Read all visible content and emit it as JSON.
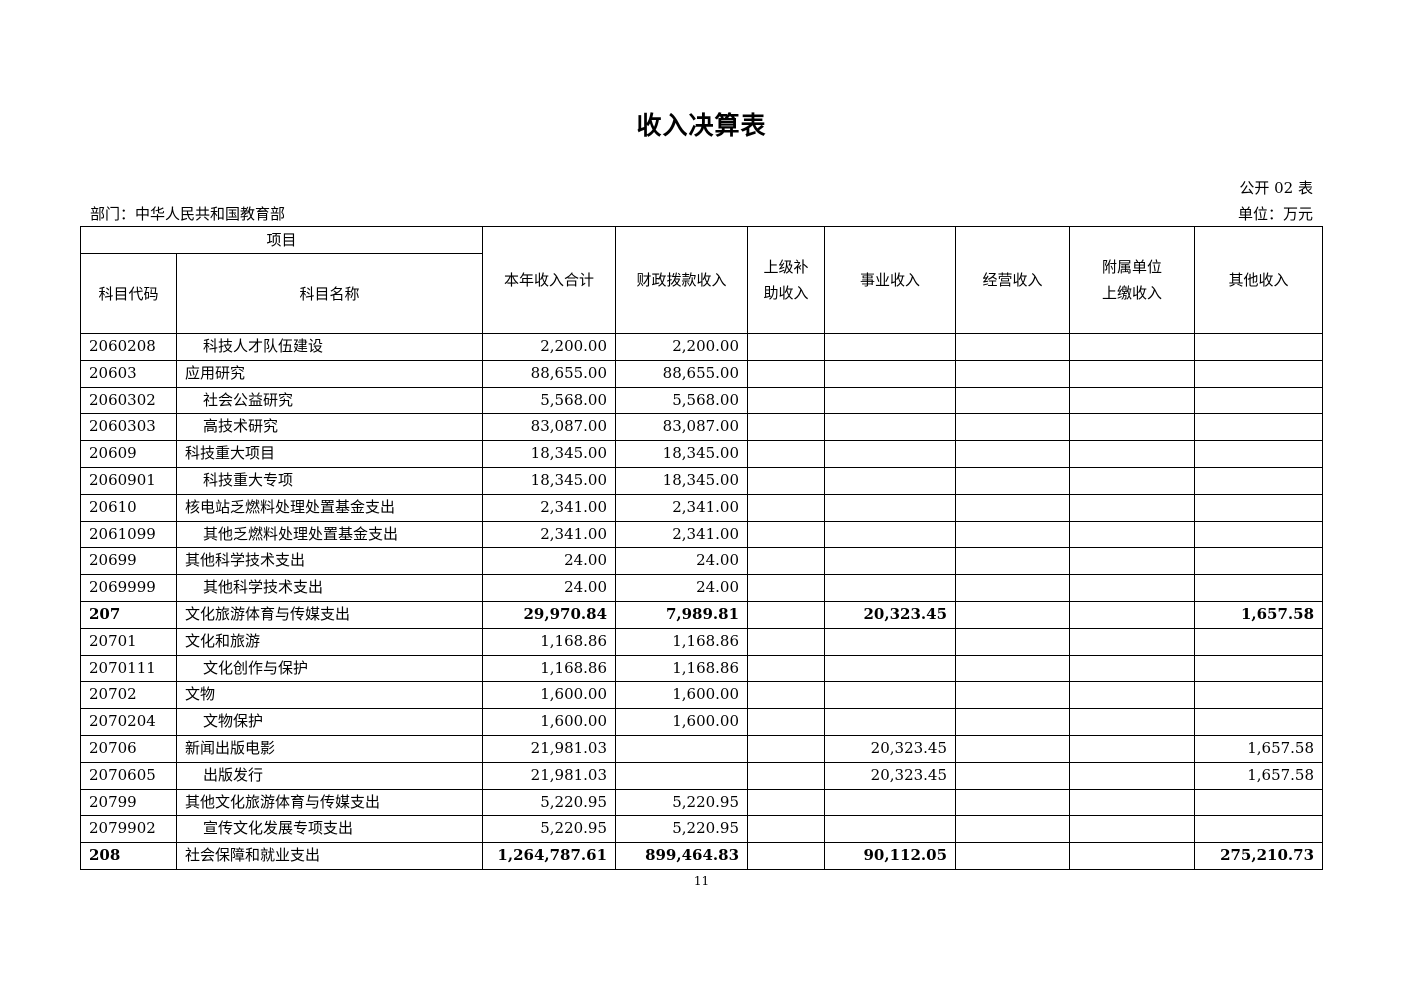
{
  "title": "收入决算表",
  "form_number": "公开 02 表",
  "department": "部门：中华人民共和国教育部",
  "unit": "单位：万元",
  "header": {
    "item_group": "项目",
    "code": "科目代码",
    "name": "科目名称",
    "total": "本年收入合计",
    "fiscal": "财政拨款收入",
    "upper_subsidy": "上级补助收入",
    "business": "事业收入",
    "operating": "经营收入",
    "affiliated": "附属单位上缴收入",
    "other": "其他收入"
  },
  "rows": [
    {
      "code": "2060208",
      "name": "科技人才队伍建设",
      "indent": true,
      "total": "2,200.00",
      "fiscal": "2,200.00",
      "upper_subsidy": "",
      "business": "",
      "operating": "",
      "affiliated": "",
      "other": ""
    },
    {
      "code": "20603",
      "name": "应用研究",
      "indent": false,
      "total": "88,655.00",
      "fiscal": "88,655.00",
      "upper_subsidy": "",
      "business": "",
      "operating": "",
      "affiliated": "",
      "other": ""
    },
    {
      "code": "2060302",
      "name": "社会公益研究",
      "indent": true,
      "total": "5,568.00",
      "fiscal": "5,568.00",
      "upper_subsidy": "",
      "business": "",
      "operating": "",
      "affiliated": "",
      "other": ""
    },
    {
      "code": "2060303",
      "name": "高技术研究",
      "indent": true,
      "total": "83,087.00",
      "fiscal": "83,087.00",
      "upper_subsidy": "",
      "business": "",
      "operating": "",
      "affiliated": "",
      "other": ""
    },
    {
      "code": "20609",
      "name": "科技重大项目",
      "indent": false,
      "total": "18,345.00",
      "fiscal": "18,345.00",
      "upper_subsidy": "",
      "business": "",
      "operating": "",
      "affiliated": "",
      "other": ""
    },
    {
      "code": "2060901",
      "name": "科技重大专项",
      "indent": true,
      "total": "18,345.00",
      "fiscal": "18,345.00",
      "upper_subsidy": "",
      "business": "",
      "operating": "",
      "affiliated": "",
      "other": ""
    },
    {
      "code": "20610",
      "name": "核电站乏燃料处理处置基金支出",
      "indent": false,
      "total": "2,341.00",
      "fiscal": "2,341.00",
      "upper_subsidy": "",
      "business": "",
      "operating": "",
      "affiliated": "",
      "other": ""
    },
    {
      "code": "2061099",
      "name": "其他乏燃料处理处置基金支出",
      "indent": true,
      "total": "2,341.00",
      "fiscal": "2,341.00",
      "upper_subsidy": "",
      "business": "",
      "operating": "",
      "affiliated": "",
      "other": ""
    },
    {
      "code": "20699",
      "name": "其他科学技术支出",
      "indent": false,
      "total": "24.00",
      "fiscal": "24.00",
      "upper_subsidy": "",
      "business": "",
      "operating": "",
      "affiliated": "",
      "other": ""
    },
    {
      "code": "2069999",
      "name": "其他科学技术支出",
      "indent": true,
      "total": "24.00",
      "fiscal": "24.00",
      "upper_subsidy": "",
      "business": "",
      "operating": "",
      "affiliated": "",
      "other": ""
    },
    {
      "code": "207",
      "name": "文化旅游体育与传媒支出",
      "indent": false,
      "bold": true,
      "total": "29,970.84",
      "fiscal": "7,989.81",
      "upper_subsidy": "",
      "business": "20,323.45",
      "operating": "",
      "affiliated": "",
      "other": "1,657.58"
    },
    {
      "code": "20701",
      "name": "文化和旅游",
      "indent": false,
      "total": "1,168.86",
      "fiscal": "1,168.86",
      "upper_subsidy": "",
      "business": "",
      "operating": "",
      "affiliated": "",
      "other": ""
    },
    {
      "code": "2070111",
      "name": "文化创作与保护",
      "indent": true,
      "total": "1,168.86",
      "fiscal": "1,168.86",
      "upper_subsidy": "",
      "business": "",
      "operating": "",
      "affiliated": "",
      "other": ""
    },
    {
      "code": "20702",
      "name": "文物",
      "indent": false,
      "total": "1,600.00",
      "fiscal": "1,600.00",
      "upper_subsidy": "",
      "business": "",
      "operating": "",
      "affiliated": "",
      "other": ""
    },
    {
      "code": "2070204",
      "name": "文物保护",
      "indent": true,
      "total": "1,600.00",
      "fiscal": "1,600.00",
      "upper_subsidy": "",
      "business": "",
      "operating": "",
      "affiliated": "",
      "other": ""
    },
    {
      "code": "20706",
      "name": "新闻出版电影",
      "indent": false,
      "total": "21,981.03",
      "fiscal": "",
      "upper_subsidy": "",
      "business": "20,323.45",
      "operating": "",
      "affiliated": "",
      "other": "1,657.58"
    },
    {
      "code": "2070605",
      "name": "出版发行",
      "indent": true,
      "total": "21,981.03",
      "fiscal": "",
      "upper_subsidy": "",
      "business": "20,323.45",
      "operating": "",
      "affiliated": "",
      "other": "1,657.58"
    },
    {
      "code": "20799",
      "name": "其他文化旅游体育与传媒支出",
      "indent": false,
      "total": "5,220.95",
      "fiscal": "5,220.95",
      "upper_subsidy": "",
      "business": "",
      "operating": "",
      "affiliated": "",
      "other": ""
    },
    {
      "code": "2079902",
      "name": "宣传文化发展专项支出",
      "indent": true,
      "total": "5,220.95",
      "fiscal": "5,220.95",
      "upper_subsidy": "",
      "business": "",
      "operating": "",
      "affiliated": "",
      "other": ""
    },
    {
      "code": "208",
      "name": "社会保障和就业支出",
      "indent": false,
      "bold": true,
      "total": "1,264,787.61",
      "fiscal": "899,464.83",
      "upper_subsidy": "",
      "business": "90,112.05",
      "operating": "",
      "affiliated": "",
      "other": "275,210.73"
    }
  ],
  "page_number": "11"
}
